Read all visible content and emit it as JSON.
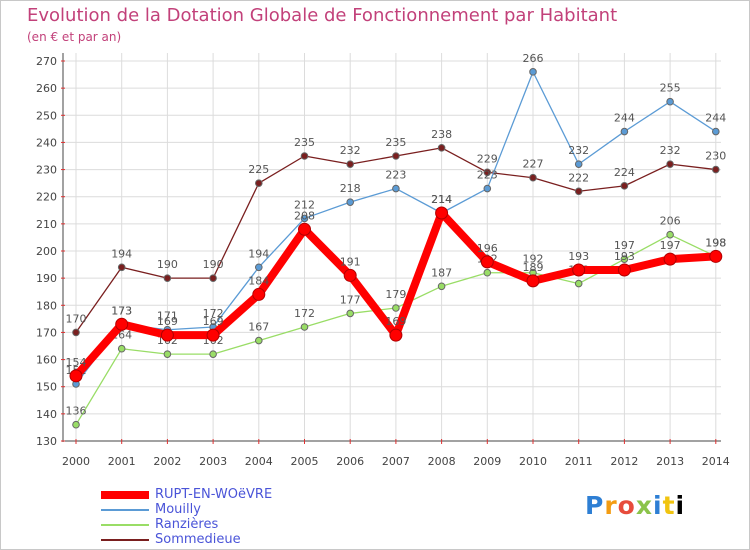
{
  "chart_data": {
    "type": "line",
    "title": "Evolution de la Dotation Globale de Fonctionnement par Habitant",
    "subtitle": "(en € et par an)",
    "xlabel": "",
    "ylabel": "",
    "categories": [
      "2000",
      "2001",
      "2002",
      "2003",
      "2004",
      "2005",
      "2006",
      "2007",
      "2008",
      "2009",
      "2010",
      "2011",
      "2012",
      "2013",
      "2014"
    ],
    "ylim": [
      130,
      270
    ],
    "yticks": [
      130,
      140,
      150,
      160,
      170,
      180,
      190,
      200,
      210,
      220,
      230,
      240,
      250,
      260,
      270
    ],
    "grid": true,
    "legend_position": "bottom-left",
    "series": [
      {
        "name": "Sommedieue",
        "color": "#7a1f1f",
        "values": [
          170,
          194,
          190,
          190,
          225,
          235,
          232,
          235,
          238,
          229,
          227,
          222,
          224,
          232,
          230
        ]
      },
      {
        "name": "Ranzières",
        "color": "#99dd66",
        "values": [
          136,
          164,
          162,
          162,
          167,
          172,
          177,
          179,
          187,
          192,
          192,
          188,
          197,
          206,
          198
        ]
      },
      {
        "name": "Mouilly",
        "color": "#5b9bd5",
        "values": [
          151,
          173,
          171,
          172,
          194,
          212,
          218,
          223,
          214,
          223,
          266,
          232,
          244,
          255,
          244
        ]
      },
      {
        "name": "RUPT-EN-WOëVRE",
        "color": "#ff0000",
        "values": [
          154,
          173,
          169,
          169,
          184,
          208,
          191,
          169,
          214,
          196,
          189,
          193,
          193,
          197,
          198
        ]
      }
    ]
  },
  "legend": {
    "items": [
      {
        "label": "RUPT-EN-WOëVRE",
        "color": "#ff0000"
      },
      {
        "label": "Mouilly",
        "color": "#5b9bd5"
      },
      {
        "label": "Ranzières",
        "color": "#99dd66"
      },
      {
        "label": "Sommedieue",
        "color": "#7a1f1f"
      }
    ]
  },
  "logo": {
    "letters": [
      "P",
      "r",
      "o",
      "x",
      "i",
      "t",
      "i"
    ]
  }
}
